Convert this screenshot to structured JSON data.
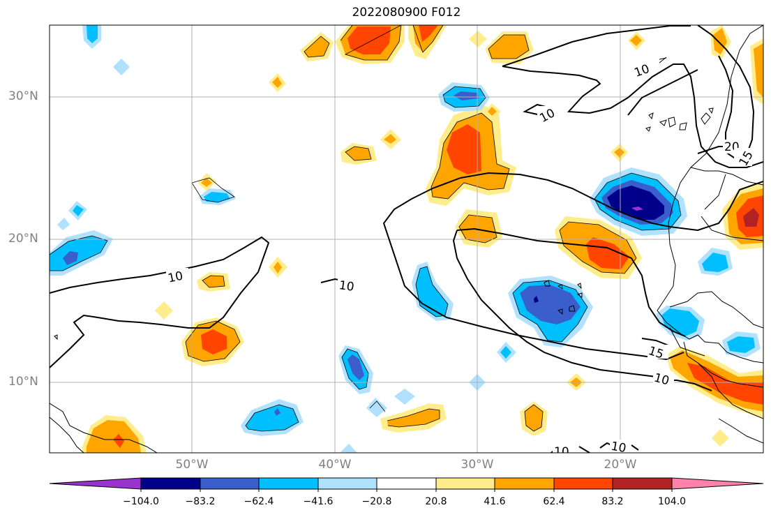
{
  "title": "2022080900 F012",
  "axes": {
    "lat_labels": [
      "30°N",
      "20°N",
      "10°N"
    ],
    "lon_labels": [
      "50°W",
      "40°W",
      "30°W",
      "20°W"
    ]
  },
  "colorbar": {
    "ticks": [
      "−104.0",
      "−83.2",
      "−62.4",
      "−41.6",
      "−20.8",
      "20.8",
      "41.6",
      "62.4",
      "83.2",
      "104.0"
    ],
    "colors": [
      "#9a32cd",
      "#00008b",
      "#3a5fcd",
      "#00bfff",
      "#b0e2ff",
      "#ffffff",
      "#ffec8b",
      "#ffa500",
      "#ff4500",
      "#b22222",
      "#ff82ab"
    ]
  },
  "contours": {
    "labels": [
      "10",
      "10",
      "10",
      "10",
      "15",
      "10",
      "20",
      "15",
      "10",
      "10"
    ]
  }
}
